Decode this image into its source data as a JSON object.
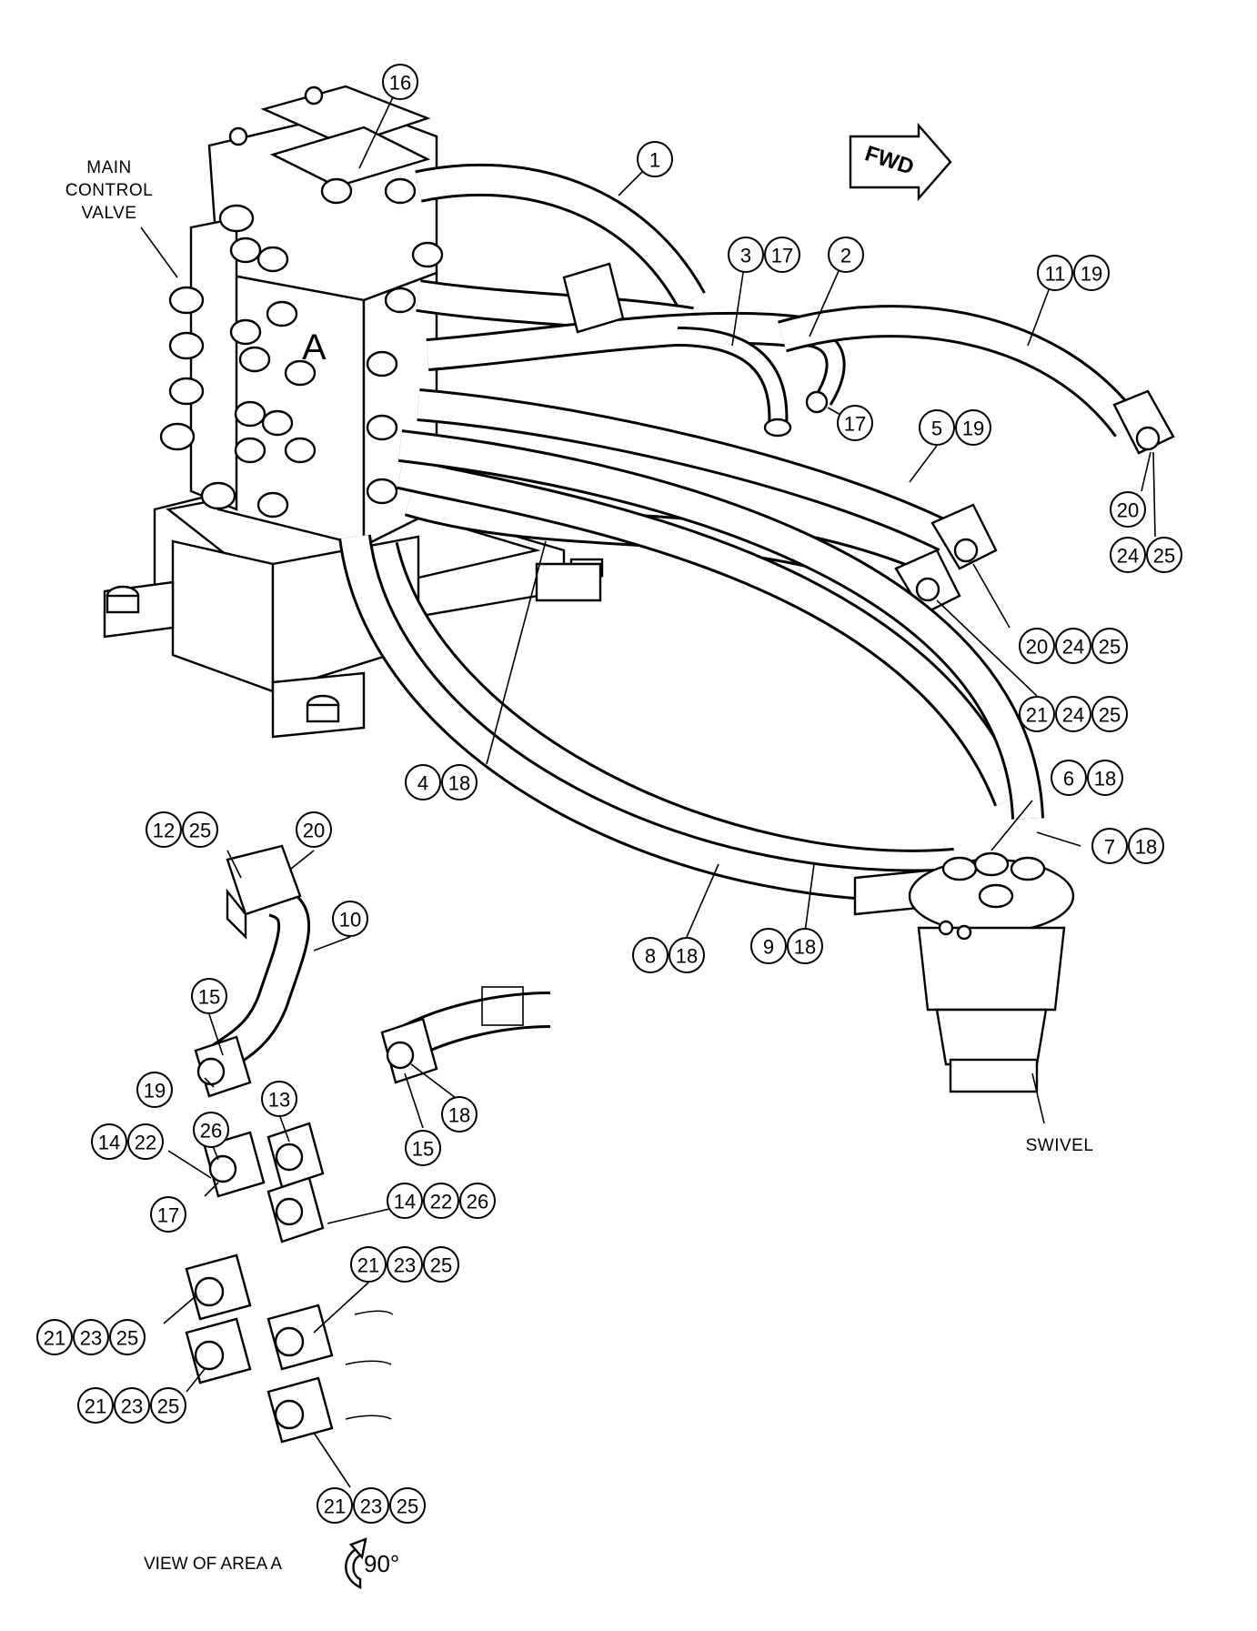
{
  "labels": {
    "main_control_valve": [
      "MAIN",
      "CONTROL",
      "VALVE"
    ],
    "swivel": "SWIVEL",
    "fwd": "FWD",
    "area": "A",
    "view_caption": "VIEW OF AREA A",
    "rotation": "90°"
  },
  "callouts": [
    {
      "id": "c16",
      "nums": [
        "16"
      ]
    },
    {
      "id": "c1",
      "nums": [
        "1"
      ]
    },
    {
      "id": "c3-17",
      "nums": [
        "3",
        "17"
      ]
    },
    {
      "id": "c2",
      "nums": [
        "2"
      ]
    },
    {
      "id": "c11-19",
      "nums": [
        "11",
        "19"
      ]
    },
    {
      "id": "c17a",
      "nums": [
        "17"
      ]
    },
    {
      "id": "c5-19",
      "nums": [
        "5",
        "19"
      ]
    },
    {
      "id": "c20a",
      "nums": [
        "20"
      ]
    },
    {
      "id": "c24-25a",
      "nums": [
        "24",
        "25"
      ]
    },
    {
      "id": "c20-24-25",
      "nums": [
        "20",
        "24",
        "25"
      ]
    },
    {
      "id": "c21-24-25",
      "nums": [
        "21",
        "24",
        "25"
      ]
    },
    {
      "id": "c4-18",
      "nums": [
        "4",
        "18"
      ]
    },
    {
      "id": "c6-18",
      "nums": [
        "6",
        "18"
      ]
    },
    {
      "id": "c7-18",
      "nums": [
        "7",
        "18"
      ]
    },
    {
      "id": "c12-25",
      "nums": [
        "12",
        "25"
      ]
    },
    {
      "id": "c20b",
      "nums": [
        "20"
      ]
    },
    {
      "id": "c10",
      "nums": [
        "10"
      ]
    },
    {
      "id": "c8-18",
      "nums": [
        "8",
        "18"
      ]
    },
    {
      "id": "c9-18",
      "nums": [
        "9",
        "18"
      ]
    },
    {
      "id": "c15a",
      "nums": [
        "15"
      ]
    },
    {
      "id": "c19",
      "nums": [
        "19"
      ]
    },
    {
      "id": "c18",
      "nums": [
        "18"
      ]
    },
    {
      "id": "c15b",
      "nums": [
        "15"
      ]
    },
    {
      "id": "c13",
      "nums": [
        "13"
      ]
    },
    {
      "id": "c26",
      "nums": [
        "26"
      ]
    },
    {
      "id": "c14-22",
      "nums": [
        "14",
        "22"
      ]
    },
    {
      "id": "c17b",
      "nums": [
        "17"
      ]
    },
    {
      "id": "c14-22-26",
      "nums": [
        "14",
        "22",
        "26"
      ]
    },
    {
      "id": "c21-23-25a",
      "nums": [
        "21",
        "23",
        "25"
      ]
    },
    {
      "id": "c21-23-25b",
      "nums": [
        "21",
        "23",
        "25"
      ]
    },
    {
      "id": "c21-23-25c",
      "nums": [
        "21",
        "23",
        "25"
      ]
    },
    {
      "id": "c21-23-25d",
      "nums": [
        "21",
        "23",
        "25"
      ]
    }
  ]
}
